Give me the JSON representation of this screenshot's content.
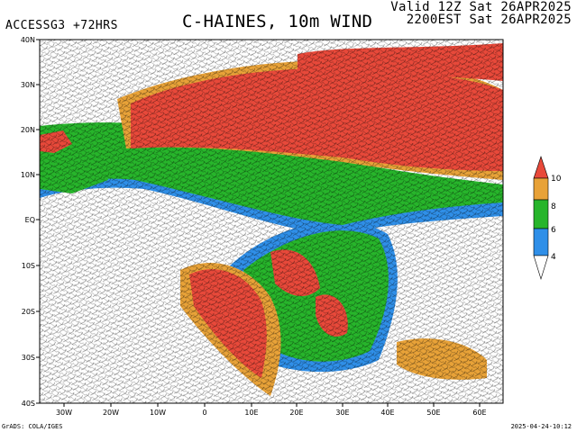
{
  "header": {
    "model_run": "ACCESSG3 +72HRS",
    "title": "C-HAINES, 10m WIND",
    "valid_utc": "Valid 12Z Sat 26APR2025",
    "valid_local": "2200EST Sat 26APR2025"
  },
  "footer": {
    "credit": "GrADS: COLA/IGES",
    "timestamp": "2025-04-24-10:12"
  },
  "map": {
    "lat_labels": [
      "40N",
      "30N",
      "20N",
      "10N",
      "EQ",
      "10S",
      "20S",
      "30S",
      "40S"
    ],
    "lon_labels": [
      "30W",
      "20W",
      "10W",
      "0",
      "10E",
      "20E",
      "30E",
      "40E",
      "50E",
      "60E"
    ]
  },
  "legend": {
    "labels": [
      "10",
      "8",
      "6",
      "4"
    ],
    "colors": {
      "red": "#e8493a",
      "orange": "#e8a238",
      "green": "#27b52b",
      "blue": "#2f8fe8",
      "white": "#ffffff"
    }
  },
  "colors": {
    "land_high": "#e8493a",
    "land_mid": "#e8a238",
    "moderate": "#27b52b",
    "low": "#2f8fe8",
    "wind_barbs": "#000000"
  }
}
